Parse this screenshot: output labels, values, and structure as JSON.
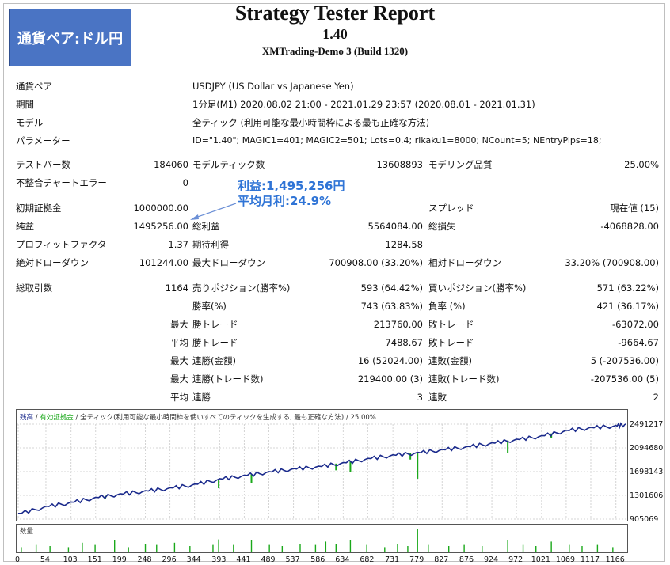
{
  "badge": "通貨ペア:ドル円",
  "report": {
    "title": "Strategy Tester Report",
    "version": "1.40",
    "server": "XMTrading-Demo 3 (Build 1320)"
  },
  "info": [
    {
      "label": "通貨ペア",
      "value": "USDJPY (US Dollar vs Japanese Yen)"
    },
    {
      "label": "期間",
      "value": "1分足(M1) 2020.08.02 21:00 - 2021.01.29 23:57 (2020.08.01 - 2021.01.31)"
    },
    {
      "label": "モデル",
      "value": "全ティック (利用可能な最小時間枠による最も正確な方法)"
    },
    {
      "label": "パラメーター",
      "value": "ID=\"1.40\"; MAGIC1=401; MAGIC2=501; Lots=0.4; rikaku1=8000; NCount=5; NEntryPips=18;"
    }
  ],
  "stats": {
    "test_bars_label": "テストバー数",
    "test_bars": "184060",
    "model_ticks_label": "モデルティック数",
    "model_ticks": "13608893",
    "model_quality_label": "モデリング品質",
    "model_quality": "25.00%",
    "mismatch_label": "不整合チャートエラー",
    "mismatch": "0",
    "initial_deposit_label": "初期証拠金",
    "initial_deposit": "1000000.00",
    "spread_label": "スプレッド",
    "spread": "現在値 (15)",
    "net_profit_label": "純益",
    "net_profit": "1495256.00",
    "gross_profit_label": "総利益",
    "gross_profit": "5564084.00",
    "gross_loss_label": "総損失",
    "gross_loss": "-4068828.00",
    "profit_factor_label": "プロフィットファクタ",
    "profit_factor": "1.37",
    "expected_payoff_label": "期待利得",
    "expected_payoff": "1284.58",
    "abs_dd_label": "絶対ドローダウン",
    "abs_dd": "101244.00",
    "max_dd_label": "最大ドローダウン",
    "max_dd": "700908.00 (33.20%)",
    "rel_dd_label": "相対ドローダウン",
    "rel_dd": "33.20% (700908.00)",
    "total_trades_label": "総取引数",
    "total_trades": "1164",
    "short_label": "売りポジション(勝率%)",
    "short": "593 (64.42%)",
    "long_label": "買いポジション(勝率%)",
    "long": "571 (63.22%)",
    "win_rate_label": "勝率(%)",
    "win_rate": "743 (63.83%)",
    "loss_rate_label": "負率 (%)",
    "loss_rate": "421 (36.17%)",
    "max_label": "最大",
    "avg_label": "平均",
    "win_trade_label": "勝トレード",
    "loss_trade_label": "敗トレード",
    "max_win_trade": "213760.00",
    "max_loss_trade": "-63072.00",
    "avg_win_trade": "7488.67",
    "avg_loss_trade": "-9664.67",
    "consec_win_amt_label": "連勝(金額)",
    "consec_win_amt": "16 (52024.00)",
    "consec_loss_amt_label": "連敗(金額)",
    "consec_loss_amt": "5 (-207536.00)",
    "consec_win_trades_label": "連勝(トレード数)",
    "consec_win_trades": "219400.00 (3)",
    "consec_loss_trades_label": "連敗(トレード数)",
    "consec_loss_trades": "-207536.00 (5)",
    "avg_consec_win_label": "連勝",
    "avg_consec_win": "3",
    "avg_consec_loss_label": "連敗",
    "avg_consec_loss": "2"
  },
  "annotation": {
    "line1": "利益:1,495,256円",
    "line2": "平均月利:24.9%"
  },
  "chart_header": {
    "balance": "残高",
    "sep1": " / ",
    "equity": "有効証拠金",
    "sep2": " / ",
    "model": "全ティック(利用可能な最小時間枠を使いすべてのティックを生成する, 最も正確な方法) / 25.00%"
  },
  "volume_label": "数量",
  "colors": {
    "balance": "#1a2a8c",
    "equity": "#1aa81a",
    "volume": "#1aa81a",
    "annotation": "#2f74d6",
    "badge": "#4a74c4"
  },
  "chart_data": {
    "type": "line",
    "title": "",
    "ylabel": "",
    "xlabel": "",
    "ylim": [
      905069,
      2491217
    ],
    "yticks": [
      2491217,
      2094680,
      1698143,
      1301606,
      905069
    ],
    "xticks": [
      0,
      54,
      103,
      151,
      199,
      248,
      296,
      344,
      393,
      441,
      489,
      537,
      586,
      634,
      682,
      731,
      779,
      827,
      876,
      924,
      972,
      1021,
      1069,
      1117,
      1166
    ],
    "xlim": [
      0,
      1185
    ],
    "series": [
      {
        "name": "残高",
        "x": [
          0,
          54,
          103,
          151,
          199,
          248,
          296,
          344,
          393,
          441,
          489,
          537,
          586,
          634,
          682,
          731,
          779,
          827,
          876,
          924,
          972,
          1021,
          1069,
          1117,
          1166,
          1185
        ],
        "values": [
          1000000,
          1120000,
          1190000,
          1270000,
          1330000,
          1380000,
          1430000,
          1490000,
          1580000,
          1640000,
          1700000,
          1750000,
          1790000,
          1850000,
          1920000,
          1980000,
          2020000,
          2070000,
          2120000,
          2180000,
          2240000,
          2300000,
          2390000,
          2440000,
          2470000,
          2495256
        ]
      },
      {
        "name": "有効証拠金",
        "dips": [
          {
            "x": 170,
            "value": 1250000
          },
          {
            "x": 391,
            "value": 1420000
          },
          {
            "x": 455,
            "value": 1500000
          },
          {
            "x": 620,
            "value": 1720000
          },
          {
            "x": 648,
            "value": 1690000
          },
          {
            "x": 765,
            "value": 1900000
          },
          {
            "x": 779,
            "value": 1580000
          },
          {
            "x": 955,
            "value": 2010000
          },
          {
            "x": 1040,
            "value": 2260000
          }
        ]
      }
    ],
    "volume": [
      {
        "x": 6,
        "v": 0.2
      },
      {
        "x": 35,
        "v": 0.3
      },
      {
        "x": 62,
        "v": 0.25
      },
      {
        "x": 98,
        "v": 0.2
      },
      {
        "x": 125,
        "v": 0.4
      },
      {
        "x": 150,
        "v": 0.3
      },
      {
        "x": 188,
        "v": 0.5
      },
      {
        "x": 215,
        "v": 0.2
      },
      {
        "x": 248,
        "v": 0.35
      },
      {
        "x": 270,
        "v": 0.3
      },
      {
        "x": 305,
        "v": 0.4
      },
      {
        "x": 335,
        "v": 0.25
      },
      {
        "x": 380,
        "v": 0.3
      },
      {
        "x": 391,
        "v": 0.55
      },
      {
        "x": 420,
        "v": 0.3
      },
      {
        "x": 455,
        "v": 0.5
      },
      {
        "x": 490,
        "v": 0.3
      },
      {
        "x": 515,
        "v": 0.25
      },
      {
        "x": 550,
        "v": 0.35
      },
      {
        "x": 580,
        "v": 0.3
      },
      {
        "x": 600,
        "v": 0.45
      },
      {
        "x": 620,
        "v": 0.35
      },
      {
        "x": 648,
        "v": 0.5
      },
      {
        "x": 680,
        "v": 0.3
      },
      {
        "x": 715,
        "v": 0.2
      },
      {
        "x": 740,
        "v": 0.35
      },
      {
        "x": 760,
        "v": 0.25
      },
      {
        "x": 779,
        "v": 1.0
      },
      {
        "x": 800,
        "v": 0.3
      },
      {
        "x": 840,
        "v": 0.25
      },
      {
        "x": 870,
        "v": 0.3
      },
      {
        "x": 905,
        "v": 0.25
      },
      {
        "x": 955,
        "v": 0.5
      },
      {
        "x": 985,
        "v": 0.3
      },
      {
        "x": 1010,
        "v": 0.25
      },
      {
        "x": 1040,
        "v": 0.45
      },
      {
        "x": 1075,
        "v": 0.3
      },
      {
        "x": 1100,
        "v": 0.25
      },
      {
        "x": 1130,
        "v": 0.3
      },
      {
        "x": 1160,
        "v": 0.2
      }
    ]
  }
}
